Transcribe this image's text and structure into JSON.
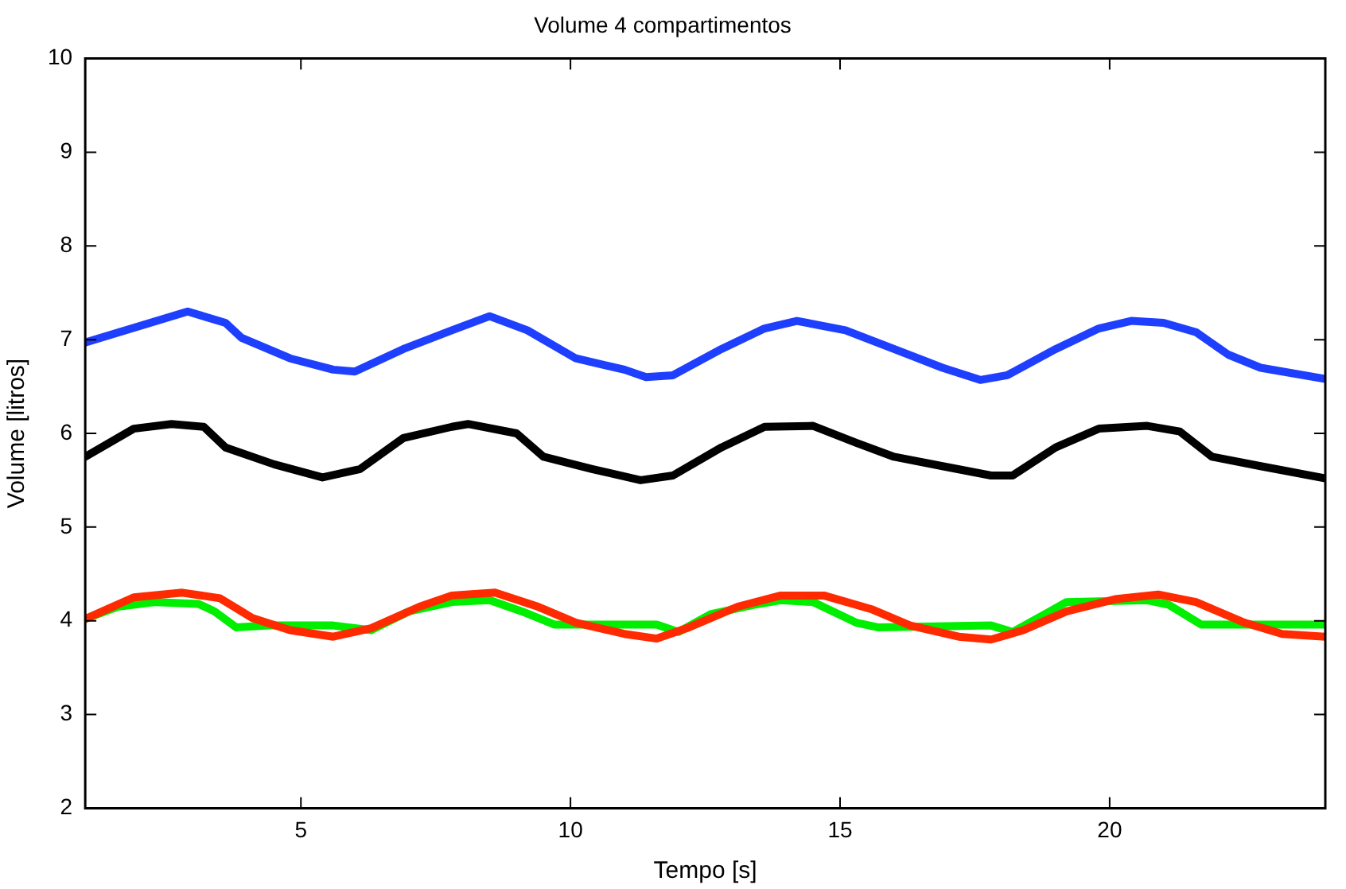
{
  "chart_data": {
    "type": "line",
    "title": "Volume 4 compartimentos",
    "xlabel": "Tempo [s]",
    "ylabel": "Volume [litros]",
    "xlim": [
      1,
      24
    ],
    "ylim": [
      2,
      10
    ],
    "xticks": [
      5,
      10,
      15,
      20
    ],
    "yticks": [
      2,
      3,
      4,
      5,
      6,
      7,
      8,
      9,
      10
    ],
    "line_style": "solid",
    "marker": "none",
    "series": [
      {
        "color": "#1f3fff",
        "x": [
          1,
          2.9,
          3.6,
          3.9,
          4.8,
          5.6,
          6,
          6.9,
          7.8,
          8.5,
          9.2,
          10.1,
          11,
          11.4,
          11.9,
          12.8,
          13.6,
          14.2,
          15.1,
          16,
          16.9,
          17.6,
          18.1,
          19,
          19.8,
          20.4,
          21,
          21.6,
          22.2,
          22.8,
          24
        ],
        "values": [
          6.97,
          7.3,
          7.18,
          7.02,
          6.8,
          6.68,
          6.66,
          6.9,
          7.1,
          7.25,
          7.1,
          6.8,
          6.68,
          6.6,
          6.62,
          6.9,
          7.12,
          7.2,
          7.1,
          6.9,
          6.7,
          6.57,
          6.62,
          6.9,
          7.12,
          7.2,
          7.18,
          7.08,
          6.84,
          6.7,
          6.58
        ]
      },
      {
        "color": "#000000",
        "x": [
          1,
          1.9,
          2.6,
          3.2,
          3.6,
          4.5,
          5.4,
          6.1,
          6.9,
          7.8,
          8.1,
          9,
          9.5,
          10.4,
          11.3,
          11.9,
          12.8,
          13.6,
          14.5,
          15.3,
          16,
          16.9,
          17.8,
          18.2,
          19,
          19.8,
          20.7,
          21.3,
          21.9,
          22.8,
          24
        ],
        "values": [
          5.75,
          6.05,
          6.1,
          6.07,
          5.85,
          5.67,
          5.53,
          5.62,
          5.95,
          6.07,
          6.1,
          6,
          5.75,
          5.62,
          5.5,
          5.55,
          5.85,
          6.07,
          6.08,
          5.9,
          5.75,
          5.65,
          5.55,
          5.55,
          5.85,
          6.05,
          6.08,
          6.02,
          5.75,
          5.65,
          5.52
        ]
      },
      {
        "color": "#ff2a00",
        "x": [
          1,
          1.9,
          2.8,
          3.5,
          4.1,
          4.8,
          5.6,
          6.3,
          7.2,
          7.8,
          8.6,
          9.4,
          10.1,
          11,
          11.6,
          12.2,
          13.1,
          13.9,
          14.7,
          15.6,
          16.3,
          17.2,
          17.8,
          18.4,
          19.2,
          20.1,
          20.9,
          21.6,
          22.5,
          23.2,
          24
        ],
        "values": [
          4.02,
          4.25,
          4.3,
          4.24,
          4.03,
          3.9,
          3.83,
          3.92,
          4.15,
          4.27,
          4.3,
          4.15,
          3.98,
          3.86,
          3.81,
          3.93,
          4.15,
          4.27,
          4.27,
          4.12,
          3.95,
          3.83,
          3.8,
          3.9,
          4.1,
          4.23,
          4.28,
          4.2,
          3.98,
          3.86,
          3.83
        ]
      },
      {
        "color": "#00ee00",
        "x": [
          1,
          1.6,
          2.3,
          3.1,
          3.4,
          3.8,
          4.4,
          5.6,
          6.3,
          7,
          7.8,
          8.5,
          9.1,
          9.7,
          11,
          11.6,
          12,
          12.6,
          13.4,
          13.9,
          14.5,
          15.3,
          15.7,
          17.8,
          18.2,
          18.8,
          19.2,
          20.7,
          21.1,
          21.7,
          24
        ],
        "values": [
          4.02,
          4.15,
          4.2,
          4.18,
          4.1,
          3.93,
          3.95,
          3.95,
          3.9,
          4.1,
          4.2,
          4.22,
          4.1,
          3.96,
          3.96,
          3.96,
          3.88,
          4.07,
          4.17,
          4.22,
          4.2,
          3.98,
          3.93,
          3.95,
          3.88,
          4.07,
          4.2,
          4.22,
          4.17,
          3.96,
          3.96
        ]
      }
    ]
  }
}
